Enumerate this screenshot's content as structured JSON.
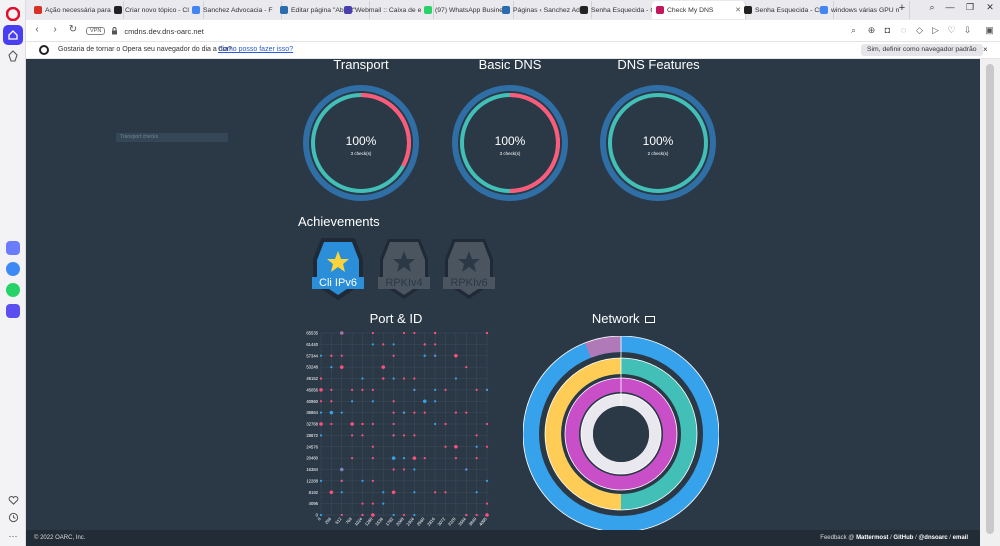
{
  "tabs": [
    {
      "label": "Ação necessária para",
      "color": "#d93025"
    },
    {
      "label": "Criar novo tópico - Cl",
      "color": "#222222"
    },
    {
      "label": "Sanchez Advocacia - F",
      "color": "#4285f4"
    },
    {
      "label": "Editar página \"About\"",
      "color": "#2b6cb0"
    },
    {
      "label": "Webmail :: Caixa de e",
      "color": "#4a3fb0"
    },
    {
      "label": "(97) WhatsApp Busine",
      "color": "#25d366"
    },
    {
      "label": "Páginas ‹ Sanchez Adv",
      "color": "#2b6cb0"
    },
    {
      "label": "Senha Esquecida - Cli",
      "color": "#222222"
    },
    {
      "label": "Check My DNS",
      "color": "#c2185b"
    },
    {
      "label": "Senha Esquecida - Cli",
      "color": "#222222"
    },
    {
      "label": "windows várias GPU n",
      "color": "#4285f4"
    }
  ],
  "addressbar": {
    "vpn": "VPN",
    "url": "cmdns.dev.dns-oarc.net"
  },
  "infobar": {
    "message": "Gostaria de tornar o Opera seu navegador do dia a dia?",
    "link": "Como posso fazer isso?",
    "button": "Sim, definir como navegador padrão",
    "close": "×"
  },
  "gauges": [
    {
      "title": "Transport",
      "value": "100%",
      "sub": "3 check(s)",
      "arc_fraction": 0.33,
      "arc_color": "#ff5a7a",
      "inner_color": "#42c0b8"
    },
    {
      "title": "Basic DNS",
      "value": "100%",
      "sub": "3 check(s)",
      "arc_fraction": 0.5,
      "arc_color": "#ff5a7a",
      "inner_color": "#42c0b8"
    },
    {
      "title": "DNS Features",
      "value": "100%",
      "sub": "2 check(s)",
      "arc_fraction": 0,
      "arc_color": "#ff5a7a",
      "inner_color": "#42c0b8"
    }
  ],
  "achievements": {
    "title": "Achievements",
    "badges": [
      {
        "label": "Cli IPv6",
        "earned": true
      },
      {
        "label": "RPKIv4",
        "earned": false
      },
      {
        "label": "RPKIv6",
        "earned": false
      }
    ]
  },
  "port_id": {
    "title": "Port & ID",
    "y_ticks": [
      "65535",
      "61440",
      "57344",
      "53248",
      "49152",
      "45056",
      "40960",
      "36864",
      "32768",
      "28672",
      "24576",
      "20480",
      "16384",
      "12288",
      "8192",
      "4096",
      "0"
    ],
    "x_ticks": [
      "0",
      "256",
      "512",
      "768",
      "1024",
      "1280",
      "1536",
      "1792",
      "2048",
      "2304",
      "2560",
      "2816",
      "3072",
      "3328",
      "3584",
      "3840",
      "4095"
    ],
    "colors": {
      "pink": "#ff4f7b",
      "blue": "#36a2eb"
    }
  },
  "network": {
    "title": "Network",
    "rings": [
      {
        "color": "#36a2eb",
        "secondary": "#b07ab8",
        "secondary_fraction": 0.06
      },
      {
        "color": "#42c0b8",
        "secondary": "#ffcd56",
        "secondary_fraction": 0.5
      },
      {
        "color": "#c94fc9",
        "secondary": "#c94fc9",
        "secondary_fraction": 0
      },
      {
        "color": "#e8e8ee",
        "secondary": "#e8e8ee",
        "secondary_fraction": 0
      }
    ]
  },
  "footer": {
    "copyright": "© 2022 OARC, Inc.",
    "feedback": "Feedback @",
    "mattermost": "Mattermost",
    "github": "GitHub",
    "twitter": "@dnsoarc",
    "email": "email",
    "sep": " / "
  },
  "tooltip_ghost": "Transport checks"
}
